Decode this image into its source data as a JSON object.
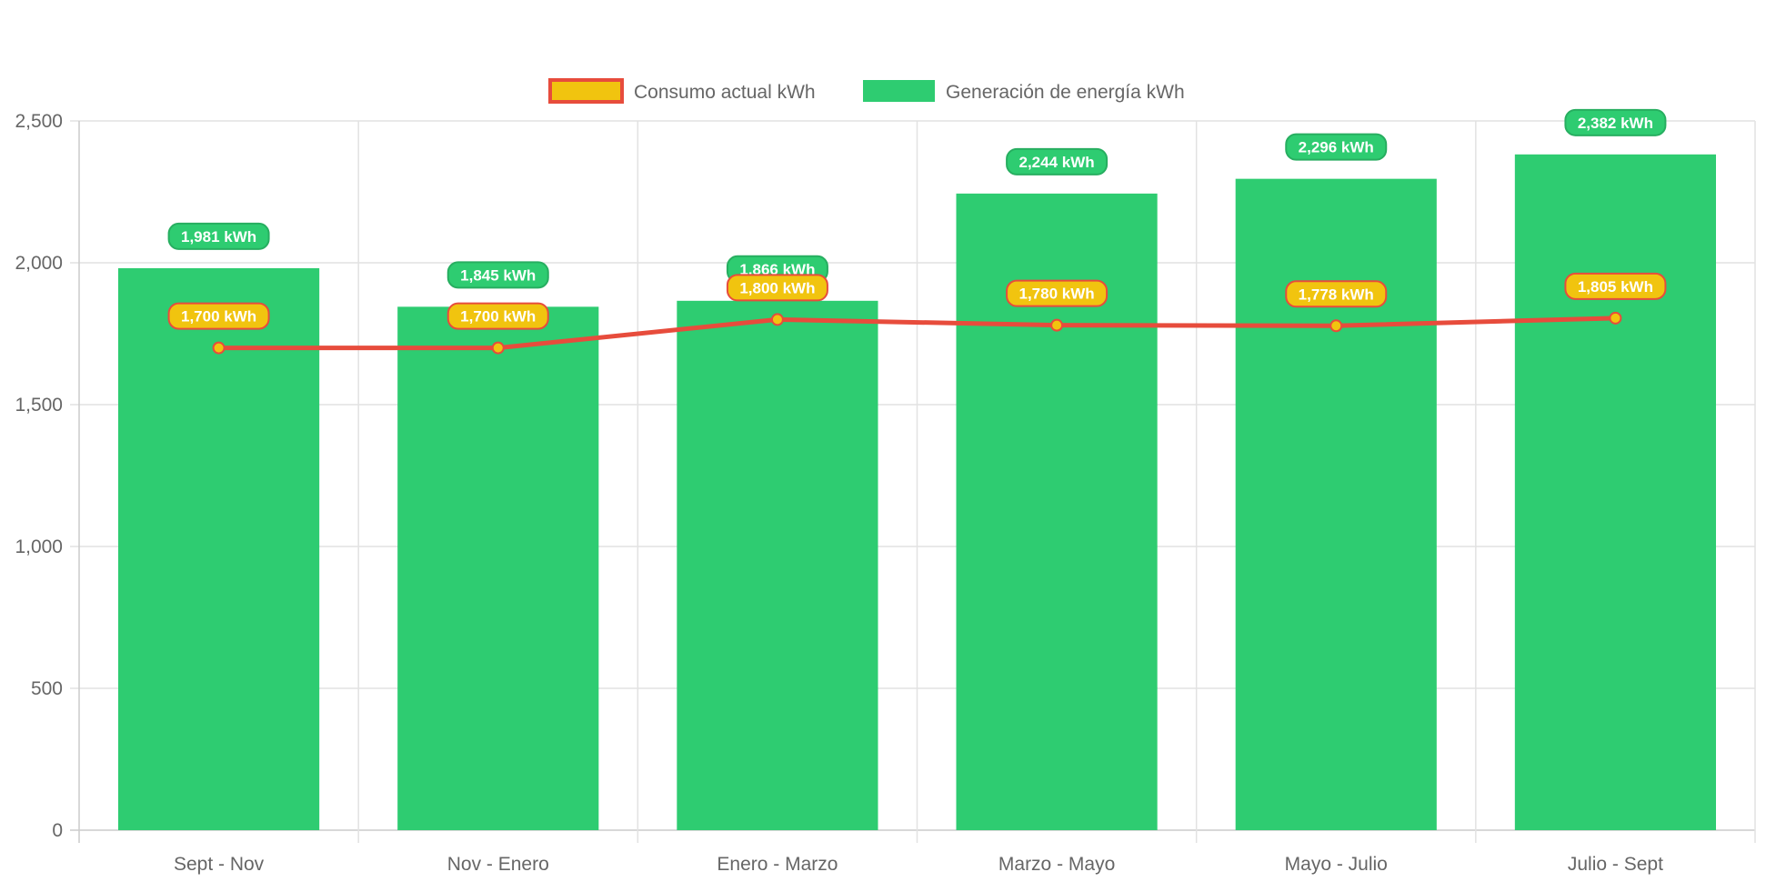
{
  "chart_data": {
    "type": "bar",
    "title": "",
    "xlabel": "",
    "ylabel": "",
    "ylim": [
      0,
      2500
    ],
    "yticks": [
      0,
      500,
      1000,
      1500,
      2000,
      2500
    ],
    "ytick_labels": [
      "0",
      "500",
      "1,000",
      "1,500",
      "2,000",
      "2,500"
    ],
    "grid": true,
    "legend_position": "top-center",
    "categories": [
      "Sept - Nov",
      "Nov - Enero",
      "Enero - Marzo",
      "Marzo - Mayo",
      "Mayo - Julio",
      "Julio - Sept"
    ],
    "series": [
      {
        "name": "Consumo actual kWh",
        "type": "line",
        "color": "#e74c3c",
        "fill": "#f1c40f",
        "values": [
          1700,
          1700,
          1800,
          1780,
          1778,
          1805
        ],
        "labels": [
          "1,700 kWh",
          "1,700 kWh",
          "1,800 kWh",
          "1,780 kWh",
          "1,778 kWh",
          "1,805 kWh"
        ]
      },
      {
        "name": "Generación de energía kWh",
        "type": "bar",
        "color": "#2ecc71",
        "values": [
          1981,
          1845,
          1866,
          2244,
          2296,
          2382
        ],
        "labels": [
          "1,981 kWh",
          "1,845 kWh",
          "1,866 kWh",
          "2,244 kWh",
          "2,296 kWh",
          "2,382 kWh"
        ]
      }
    ]
  }
}
